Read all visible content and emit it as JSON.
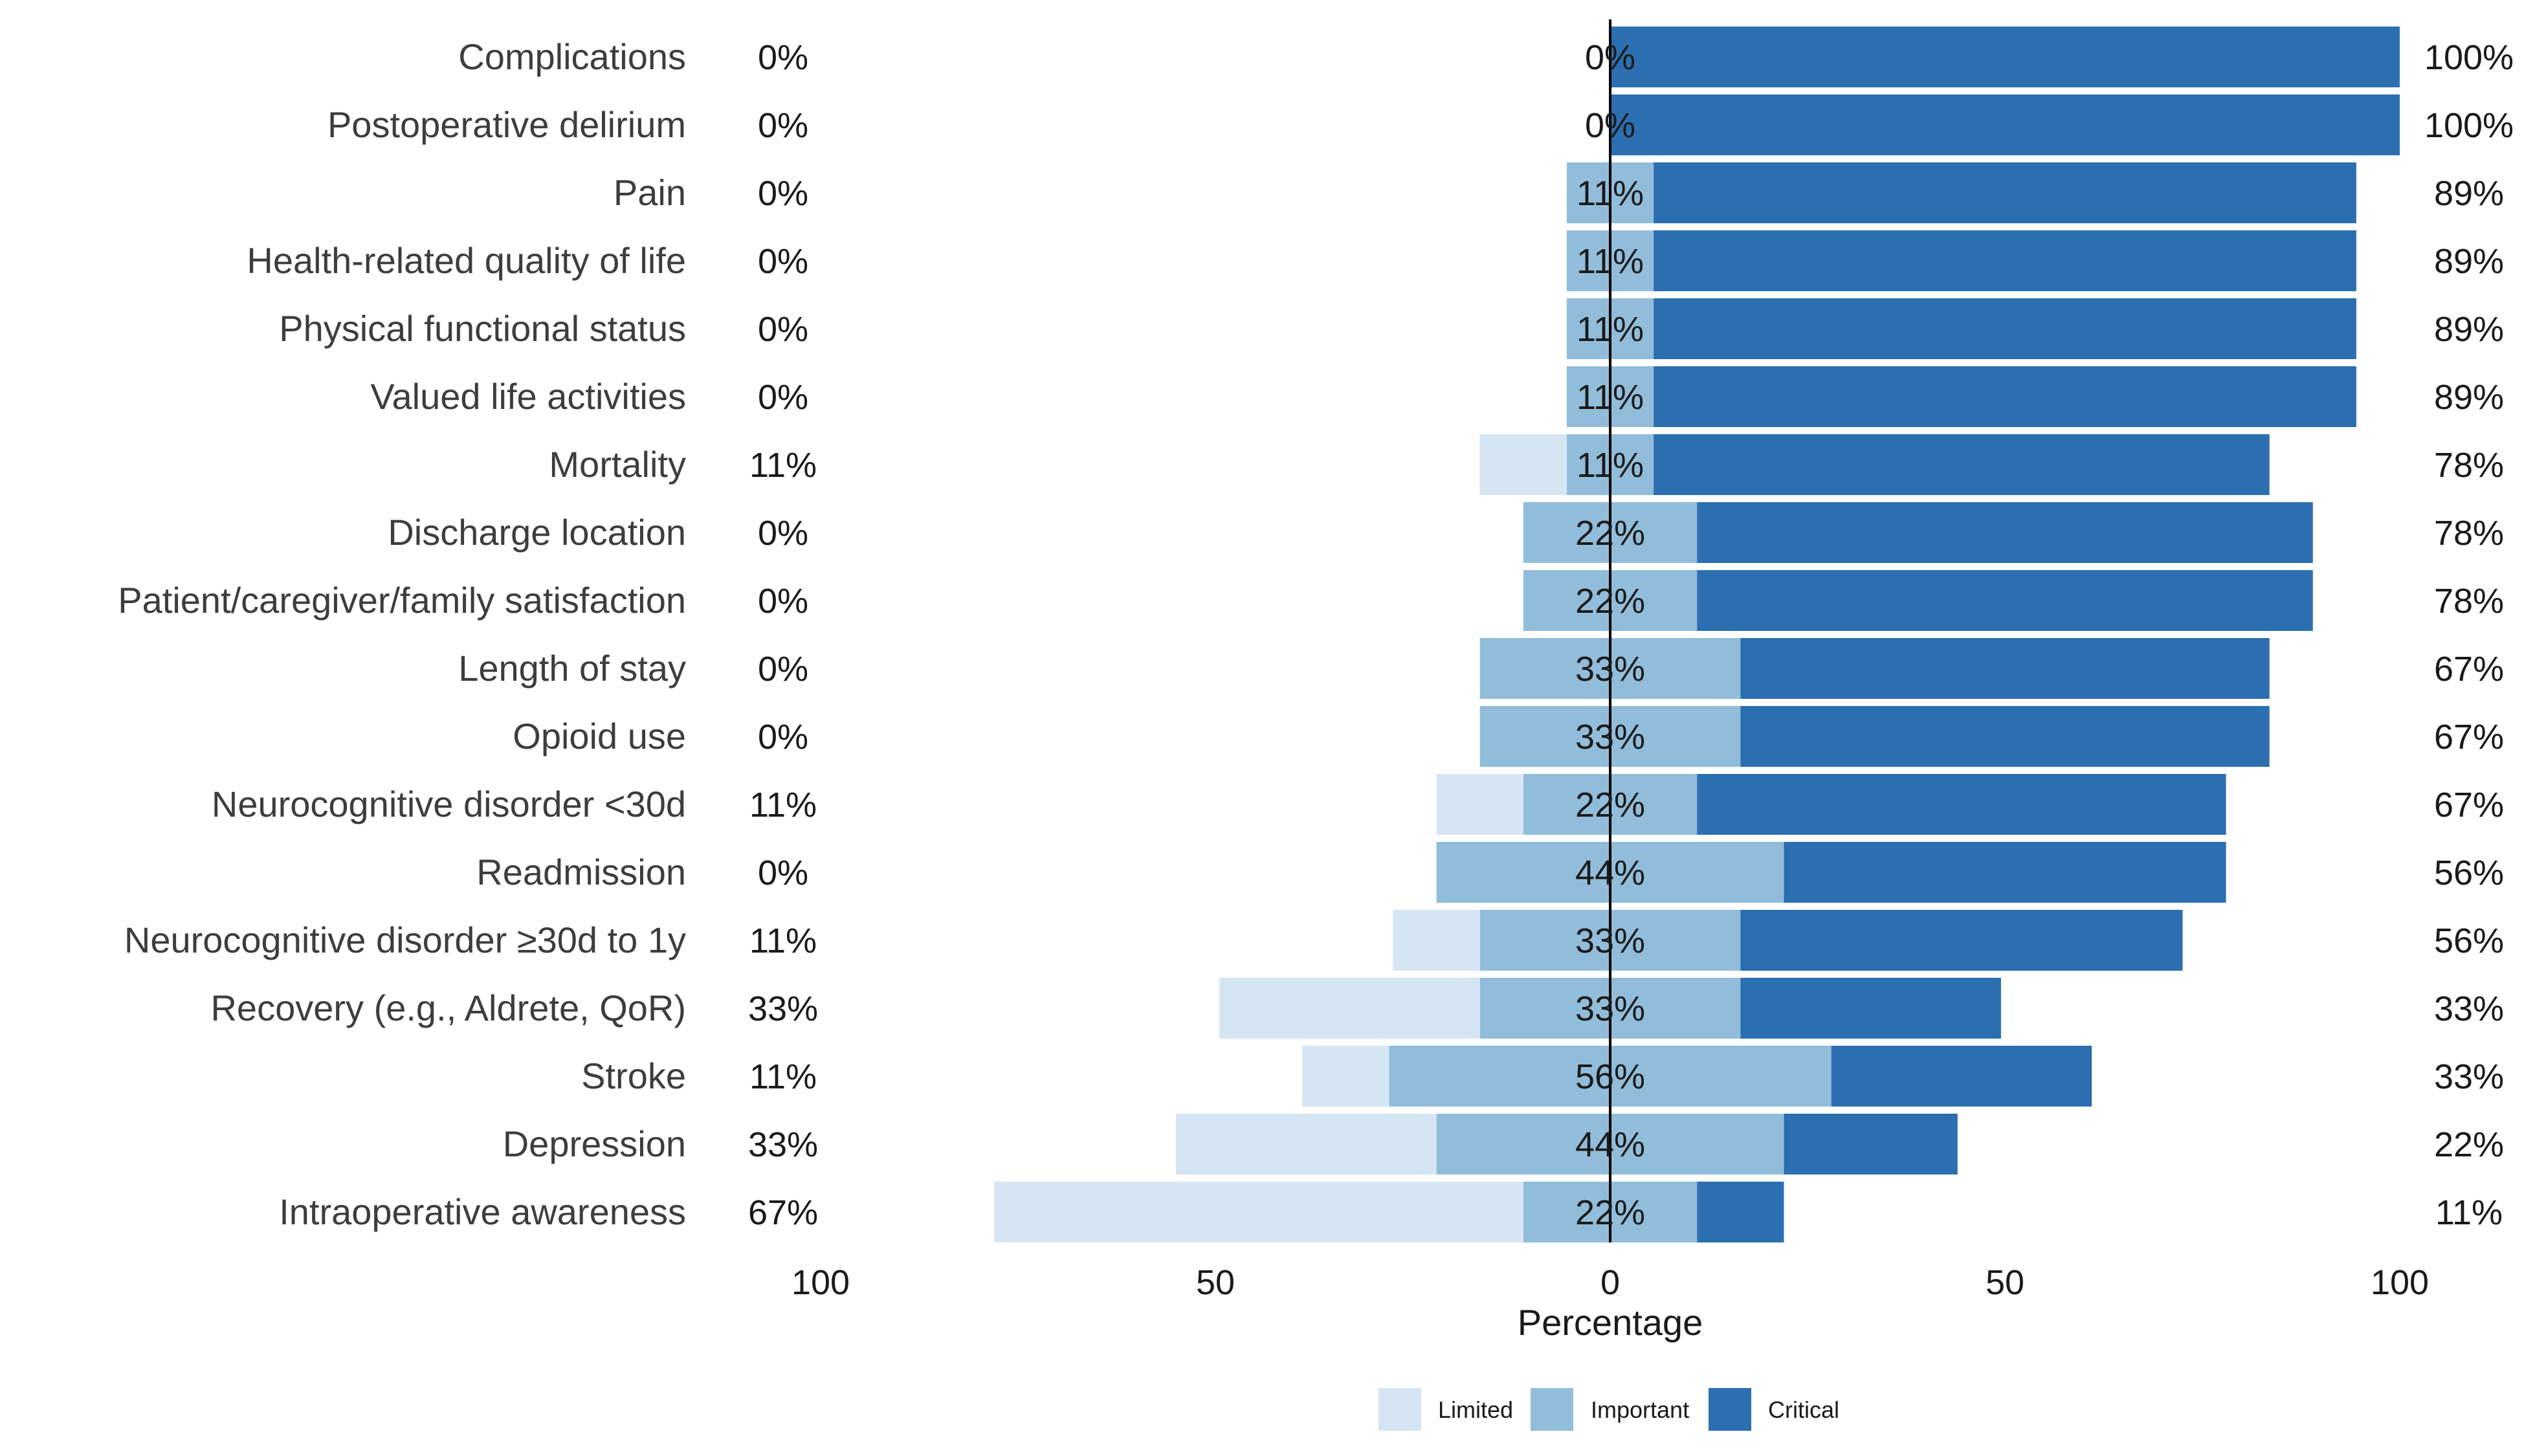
{
  "chart_data": {
    "type": "bar",
    "orientation": "horizontal",
    "stacking": "diverging",
    "xlabel": "Percentage",
    "xlim": [
      -100,
      100
    ],
    "xticks": [
      -100,
      -50,
      0,
      50,
      100
    ],
    "xtick_labels": [
      "100",
      "50",
      "0",
      "50",
      "100"
    ],
    "grid": false,
    "legend_position": "bottom",
    "categories": [
      "Complications",
      "Postoperative delirium",
      "Pain",
      "Health-related quality of life",
      "Physical functional status",
      "Valued life activities",
      "Mortality",
      "Discharge location",
      "Patient/caregiver/family satisfaction",
      "Length of stay",
      "Opioid use",
      "Neurocognitive disorder <30d",
      "Readmission",
      "Neurocognitive disorder ≥30d to 1y",
      "Recovery (e.g., Aldrete, QoR)",
      "Stroke",
      "Depression",
      "Intraoperative awareness"
    ],
    "series": [
      {
        "name": "Limited",
        "color": "#d6e5f4",
        "values": [
          0,
          0,
          0,
          0,
          0,
          0,
          11,
          0,
          0,
          0,
          0,
          11,
          0,
          11,
          33,
          11,
          33,
          67
        ]
      },
      {
        "name": "Important",
        "color": "#91bdda",
        "values": [
          0,
          0,
          11,
          11,
          11,
          11,
          11,
          22,
          22,
          33,
          33,
          22,
          44,
          33,
          33,
          56,
          44,
          22
        ]
      },
      {
        "name": "Critical",
        "color": "#2b6fb1",
        "values": [
          100,
          100,
          89,
          89,
          89,
          89,
          78,
          78,
          78,
          67,
          67,
          67,
          56,
          56,
          33,
          33,
          22,
          11
        ]
      }
    ],
    "left_labels": [
      "0%",
      "0%",
      "0%",
      "0%",
      "0%",
      "0%",
      "11%",
      "0%",
      "0%",
      "0%",
      "0%",
      "11%",
      "0%",
      "11%",
      "33%",
      "11%",
      "33%",
      "67%"
    ],
    "center_labels": [
      "0%",
      "0%",
      "11%",
      "11%",
      "11%",
      "11%",
      "11%",
      "22%",
      "22%",
      "33%",
      "33%",
      "22%",
      "44%",
      "33%",
      "33%",
      "56%",
      "44%",
      "22%"
    ],
    "right_labels": [
      "100%",
      "100%",
      "89%",
      "89%",
      "89%",
      "89%",
      "78%",
      "78%",
      "78%",
      "67%",
      "67%",
      "67%",
      "56%",
      "56%",
      "33%",
      "33%",
      "22%",
      "11%"
    ]
  }
}
